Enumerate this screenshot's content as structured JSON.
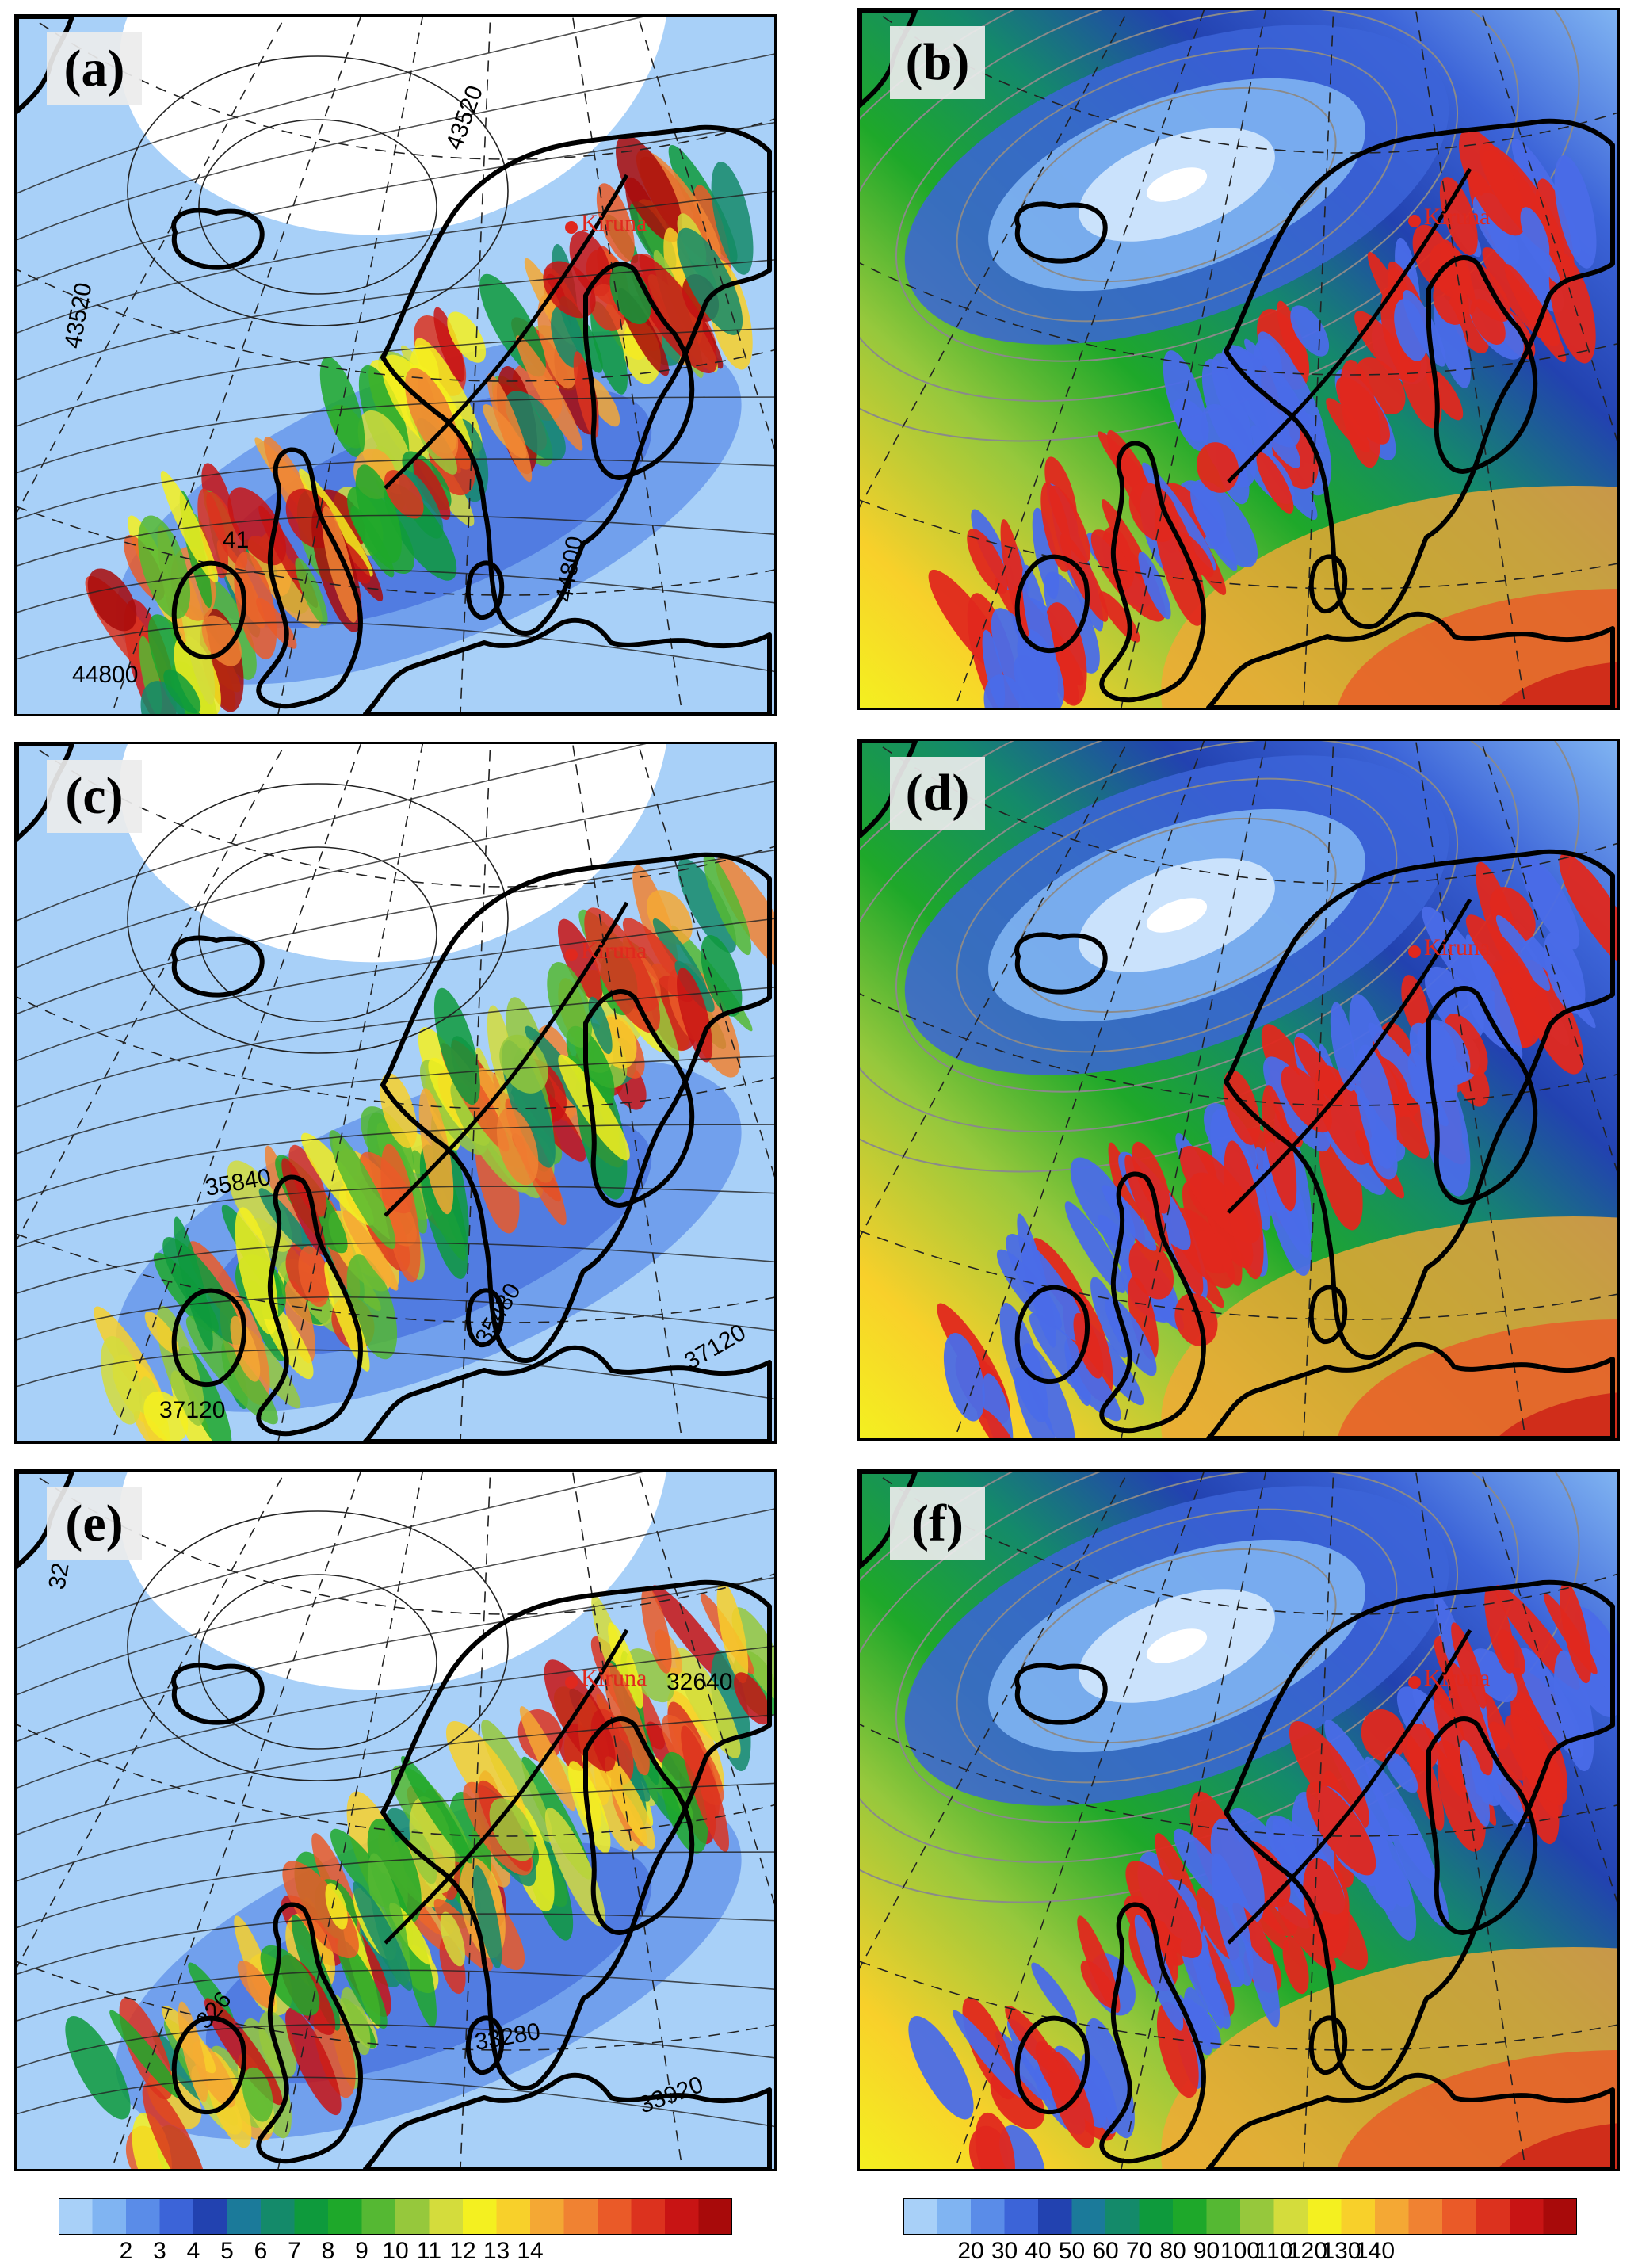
{
  "station": "Kiruna",
  "panels": [
    {
      "label": "(a)",
      "kind": "wind",
      "contour_labels": [
        "43520",
        "43520",
        "41",
        "44800",
        "44800"
      ]
    },
    {
      "label": "(b)",
      "kind": "speed",
      "contour_labels": []
    },
    {
      "label": "(c)",
      "kind": "wind",
      "contour_labels": [
        "35840",
        "35480",
        "37120",
        "37120"
      ]
    },
    {
      "label": "(d)",
      "kind": "speed",
      "contour_labels": []
    },
    {
      "label": "(e)",
      "kind": "wind",
      "contour_labels": [
        "32",
        "32640",
        "326",
        "33280",
        "33920"
      ]
    },
    {
      "label": "(f)",
      "kind": "speed",
      "contour_labels": []
    }
  ],
  "colorbar_left": {
    "ticks": [
      "2",
      "3",
      "4",
      "5",
      "6",
      "7",
      "8",
      "9",
      "10",
      "11",
      "12",
      "13",
      "14"
    ],
    "colors": [
      "#a8d0f8",
      "#80b4f2",
      "#5a8ce8",
      "#3c64d8",
      "#2242b0",
      "#1b7a9a",
      "#148a6a",
      "#0e9a3c",
      "#1ea82a",
      "#55b833",
      "#96c83c",
      "#d4dc3c",
      "#f4f020",
      "#f8d02a",
      "#f4a834",
      "#f08232",
      "#ea5a28",
      "#dc321e",
      "#c81414",
      "#a80a0a"
    ]
  },
  "colorbar_right": {
    "ticks": [
      "20",
      "30",
      "40",
      "50",
      "60",
      "70",
      "80",
      "90",
      "100",
      "110",
      "120",
      "130",
      "140"
    ],
    "colors": [
      "#a8d0f8",
      "#80b4f2",
      "#5a8ce8",
      "#3c64d8",
      "#2242b0",
      "#1b7a9a",
      "#148a6a",
      "#0e9a3c",
      "#1ea82a",
      "#55b833",
      "#96c83c",
      "#d4dc3c",
      "#f4f020",
      "#f8d02a",
      "#f4a834",
      "#f08232",
      "#ea5a28",
      "#dc321e",
      "#c81414",
      "#a80a0a"
    ]
  },
  "colors": {
    "kiruna_marker": "#e0281e",
    "coastline": "#000000",
    "updraft": "#e0281e",
    "downdraft": "#4a6ce8"
  }
}
